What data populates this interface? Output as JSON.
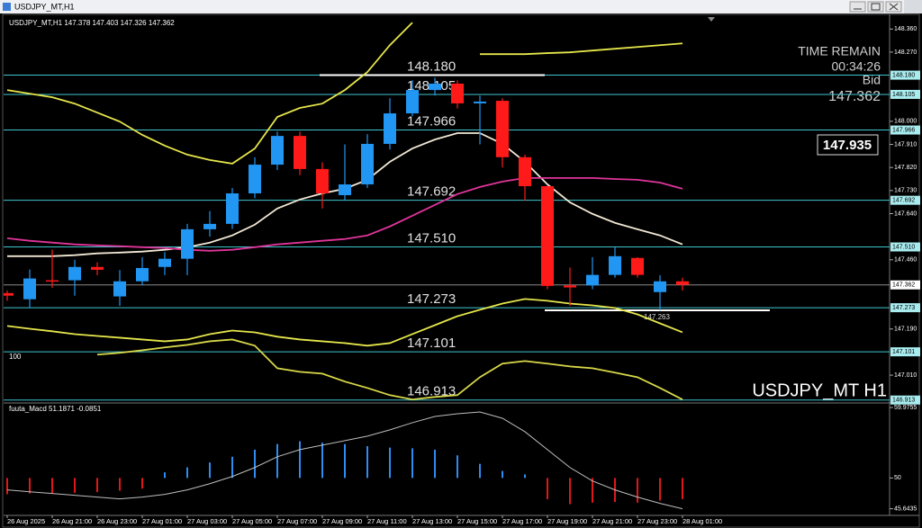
{
  "window": {
    "title": "USDJPY_MT,H1"
  },
  "chart_data": [
    {
      "type": "candlestick",
      "symbol": "USDJPY_MT,H1",
      "ohlc": [
        147.378,
        147.403,
        147.326,
        147.362
      ],
      "categories": [
        "26 Aug 2025",
        null,
        "26 Aug 21:00",
        null,
        "26 Aug 23:00",
        null,
        "27 Aug 01:00",
        null,
        "27 Aug 03:00",
        null,
        "27 Aug 05:00",
        null,
        "27 Aug 07:00",
        null,
        "27 Aug 09:00",
        null,
        "27 Aug 11:00",
        null,
        "27 Aug 13:00",
        null,
        "27 Aug 15:00",
        null,
        "27 Aug 17:00",
        null,
        "27 Aug 19:00",
        null,
        "27 Aug 21:00",
        null,
        "27 Aug 23:00",
        null,
        "28 Aug 01:00"
      ],
      "open": [
        147.33,
        147.306,
        147.38,
        147.38,
        147.432,
        147.317,
        147.376,
        147.432,
        147.464,
        147.579,
        147.6,
        147.719,
        147.831,
        147.943,
        147.814,
        147.712,
        147.754,
        147.912,
        148.031,
        148.122,
        148.147,
        148.07,
        148.08,
        147.86,
        147.747,
        147.36,
        147.36,
        147.401,
        147.467,
        147.334,
        147.376
      ],
      "high": [
        147.34,
        147.422,
        147.5,
        147.46,
        147.45,
        147.42,
        147.47,
        147.49,
        147.6,
        147.65,
        147.74,
        147.86,
        147.96,
        147.96,
        147.84,
        147.91,
        147.95,
        148.09,
        148.16,
        148.17,
        148.16,
        148.1,
        148.09,
        147.87,
        147.75,
        147.43,
        147.47,
        147.51,
        147.47,
        147.4,
        147.39
      ],
      "low": [
        147.3,
        147.271,
        147.35,
        147.32,
        147.4,
        147.28,
        147.36,
        147.4,
        147.4,
        147.55,
        147.58,
        147.7,
        147.81,
        147.79,
        147.66,
        147.69,
        147.74,
        147.89,
        148.02,
        148.1,
        148.05,
        147.91,
        147.82,
        147.69,
        147.345,
        147.28,
        147.345,
        147.39,
        147.39,
        147.263,
        147.34
      ],
      "close": [
        147.32,
        147.387,
        147.375,
        147.432,
        147.421,
        147.376,
        147.428,
        147.464,
        147.579,
        147.6,
        147.719,
        147.831,
        147.943,
        147.814,
        147.719,
        147.754,
        147.912,
        148.031,
        148.122,
        148.147,
        148.07,
        148.077,
        147.86,
        147.747,
        147.358,
        147.352,
        147.401,
        147.474,
        147.401,
        147.376,
        147.362
      ],
      "up_color": "#2196f3",
      "down_color": "#ff1a1a",
      "series": [
        {
          "color": "#e6e64c",
          "values": [
            148.122,
            148.108,
            148.094,
            148.069,
            148.034,
            147.999,
            147.947,
            147.905,
            147.87,
            147.849,
            147.835,
            147.894,
            148.017,
            148.052,
            148.069,
            148.122,
            148.192,
            148.297,
            148.385,
            null,
            null,
            148.262,
            148.262,
            148.262,
            148.266,
            148.269,
            148.276,
            148.283,
            148.29,
            148.297,
            148.304
          ]
        },
        {
          "color": "#e6e64c",
          "values": [
            147.202,
            147.191,
            147.181,
            147.17,
            147.163,
            147.156,
            147.149,
            147.142,
            147.149,
            147.17,
            147.184,
            147.177,
            147.16,
            147.149,
            147.142,
            147.135,
            147.125,
            147.135,
            147.17,
            147.205,
            147.24,
            147.265,
            147.289,
            147.307,
            147.3,
            147.289,
            147.282,
            147.272,
            147.247,
            147.212,
            147.177
          ]
        },
        {
          "color": "#d8d84a",
          "values": [
            null,
            null,
            null,
            null,
            147.09,
            147.097,
            147.107,
            147.118,
            147.128,
            147.142,
            147.149,
            147.125,
            147.037,
            147.023,
            147.016,
            146.985,
            146.96,
            146.932,
            146.915,
            146.925,
            146.932,
            147.002,
            147.055,
            147.065,
            147.055,
            147.044,
            147.037,
            147.02,
            147.002,
            146.96,
            146.915
          ]
        },
        {
          "color": "#f2e8d5",
          "values": [
            147.474,
            147.474,
            147.474,
            147.478,
            147.485,
            147.488,
            147.492,
            147.499,
            147.509,
            147.527,
            147.555,
            147.597,
            147.66,
            147.695,
            147.719,
            147.737,
            147.772,
            147.842,
            147.894,
            147.929,
            147.954,
            147.954,
            147.912,
            147.842,
            147.754,
            147.684,
            147.639,
            147.604,
            147.579,
            147.555,
            147.52
          ]
        },
        {
          "color": "#e0359a",
          "values": [
            147.544,
            147.534,
            147.527,
            147.52,
            147.516,
            147.513,
            147.509,
            147.506,
            147.499,
            147.495,
            147.499,
            147.509,
            147.52,
            147.527,
            147.534,
            147.541,
            147.555,
            147.59,
            147.632,
            147.674,
            147.716,
            147.744,
            147.765,
            147.779,
            147.779,
            147.779,
            147.779,
            147.775,
            147.772,
            147.761,
            147.737
          ]
        }
      ],
      "ylim": [
        146.905,
        148.41
      ],
      "yticks": [
        {
          "value": 148.36,
          "label": "148.360"
        },
        {
          "value": 148.27,
          "label": "148.270"
        },
        {
          "value": 148.0,
          "label": "148.000"
        },
        {
          "value": 147.91,
          "label": "147.910"
        },
        {
          "value": 147.82,
          "label": "147.820"
        },
        {
          "value": 147.73,
          "label": "147.730"
        },
        {
          "value": 147.64,
          "label": "147.640"
        },
        {
          "value": 147.46,
          "label": "147.460"
        },
        {
          "value": 147.19,
          "label": "147.190"
        },
        {
          "value": 147.01,
          "label": "147.010"
        }
      ],
      "grid": false,
      "levels": [
        {
          "value": 148.18,
          "label": "148.180"
        },
        {
          "value": 148.105,
          "label": "148.105"
        },
        {
          "value": 147.966,
          "label": "147.966"
        },
        {
          "value": 147.692,
          "label": "147.692"
        },
        {
          "value": 147.51,
          "label": "147.510"
        },
        {
          "value": 147.273,
          "label": "147.273"
        },
        {
          "value": 147.101,
          "label": "147.101"
        },
        {
          "value": 146.913,
          "label": "146.913"
        }
      ],
      "level_color": "#3fc6cf",
      "current_price": {
        "value": 147.362,
        "label": "147.362"
      },
      "low_marker": {
        "value": 147.263,
        "label": "147.263"
      },
      "marker_text": "100",
      "watermark": "USDJPY_MT H1",
      "time_remain": {
        "title": "TIME REMAIN",
        "value": "00:34:26"
      },
      "bid_title": "Bid",
      "price_box": {
        "value": 147.935,
        "label": "147.935"
      }
    },
    {
      "type": "macd",
      "title": "fuuta_Macd",
      "readings": [
        51.1871,
        -0.0851
      ],
      "baseline": 50,
      "bars": {
        "up_color": "#2f8cf0",
        "down_color": "#e01818",
        "values": [
          47.7,
          47.8,
          47.8,
          47.9,
          48.0,
          48.2,
          48.5,
          50.8,
          51.5,
          52.2,
          53.0,
          54.0,
          54.8,
          55.2,
          55.0,
          54.8,
          54.5,
          54.3,
          54.2,
          54.0,
          53.2,
          52.0,
          51.0,
          50.5,
          47.0,
          46.3,
          46.5,
          46.6,
          46.5,
          46.8,
          47.0
        ]
      },
      "line": {
        "color": "#bdbdbd",
        "values": [
          48.31,
          48.05,
          47.8,
          47.55,
          47.29,
          47.04,
          47.29,
          47.67,
          48.31,
          49.19,
          50.21,
          51.48,
          53.0,
          54.01,
          54.65,
          55.28,
          55.92,
          56.81,
          57.82,
          58.71,
          59.09,
          59.34,
          58.45,
          56.55,
          54.01,
          51.48,
          49.58,
          48.31,
          47.29,
          46.4,
          45.64
        ]
      },
      "ylim": [
        44.7,
        60.36
      ],
      "yticks": [
        59.9755,
        50,
        45.6435
      ]
    }
  ]
}
